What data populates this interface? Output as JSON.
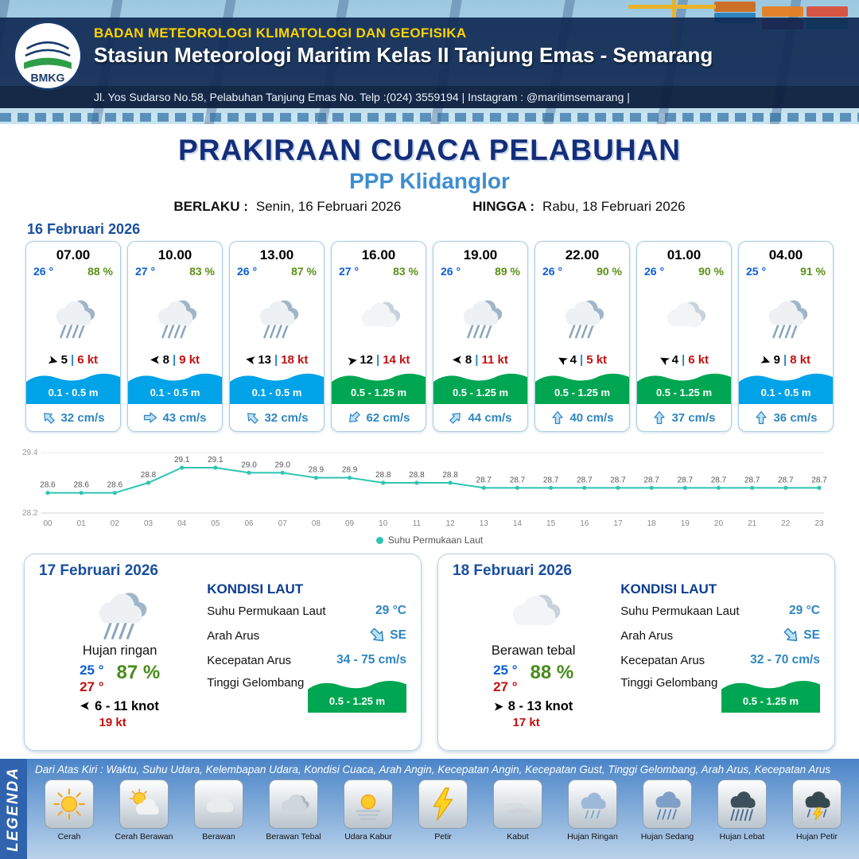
{
  "header": {
    "agency": "BADAN METEOROLOGI KLIMATOLOGI DAN GEOFISIKA",
    "station": "Stasiun Meteorologi Maritim Kelas II Tanjung Emas - Semarang",
    "address": "Jl. Yos Sudarso No.58, Pelabuhan Tanjung Emas No. Telp :(024) 3559194 | Instagram : @maritimsemarang |",
    "logo_text": "BMKG"
  },
  "title": {
    "main": "PRAKIRAAN CUACA PELABUHAN",
    "location": "PPP Klidanglor",
    "valid_label": "BERLAKU :",
    "valid_value": "Senin, 16 Februari 2026",
    "until_label": "HINGGA :",
    "until_value": "Rabu, 18 Februari 2026"
  },
  "icons": {
    "wind_arrow_glyph": "➤",
    "pipe_glyph": "|"
  },
  "hourly": {
    "date": "16 Februari 2026",
    "cards": [
      {
        "time": "07.00",
        "temperature": "26 °",
        "humidity": "88 %",
        "icon": "rain",
        "wind_dir_deg": 15,
        "wind_speed": "5",
        "wind_gust": "6 kt",
        "wave_height": "0.1 - 0.5 m",
        "wave_color": "blue",
        "current_dir_deg": -45,
        "current_speed": "32 cm/s"
      },
      {
        "time": "10.00",
        "temperature": "27 °",
        "humidity": "83 %",
        "icon": "rain",
        "wind_dir_deg": 180,
        "wind_speed": "8",
        "wind_gust": "9 kt",
        "wave_height": "0.1 - 0.5 m",
        "wave_color": "blue",
        "current_dir_deg": 90,
        "current_speed": "43 cm/s"
      },
      {
        "time": "13.00",
        "temperature": "26 °",
        "humidity": "87 %",
        "icon": "rain",
        "wind_dir_deg": 190,
        "wind_speed": "13",
        "wind_gust": "18 kt",
        "wave_height": "0.1 - 0.5 m",
        "wave_color": "blue",
        "current_dir_deg": -45,
        "current_speed": "32 cm/s"
      },
      {
        "time": "16.00",
        "temperature": "27 °",
        "humidity": "83 %",
        "icon": "cloudy",
        "wind_dir_deg": 350,
        "wind_speed": "12",
        "wind_gust": "14 kt",
        "wave_height": "0.5 - 1.25 m",
        "wave_color": "green",
        "current_dir_deg": 225,
        "current_speed": "62 cm/s"
      },
      {
        "time": "19.00",
        "temperature": "26 °",
        "humidity": "89 %",
        "icon": "rain",
        "wind_dir_deg": 180,
        "wind_speed": "8",
        "wind_gust": "11 kt",
        "wave_height": "0.5 - 1.25 m",
        "wave_color": "green",
        "current_dir_deg": 45,
        "current_speed": "44 cm/s"
      },
      {
        "time": "22.00",
        "temperature": "26 °",
        "humidity": "90 %",
        "icon": "rain",
        "wind_dir_deg": 210,
        "wind_speed": "4",
        "wind_gust": "5 kt",
        "wave_height": "0.5 - 1.25 m",
        "wave_color": "green",
        "current_dir_deg": 0,
        "current_speed": "40 cm/s"
      },
      {
        "time": "01.00",
        "temperature": "26 °",
        "humidity": "90 %",
        "icon": "cloudy",
        "wind_dir_deg": 210,
        "wind_speed": "4",
        "wind_gust": "6 kt",
        "wave_height": "0.5 - 1.25 m",
        "wave_color": "green",
        "current_dir_deg": 0,
        "current_speed": "37 cm/s"
      },
      {
        "time": "04.00",
        "temperature": "25 °",
        "humidity": "91 %",
        "icon": "rain",
        "wind_dir_deg": 20,
        "wind_speed": "9",
        "wind_gust": "8 kt",
        "wave_height": "0.1 - 0.5 m",
        "wave_color": "blue",
        "current_dir_deg": 0,
        "current_speed": "36 cm/s"
      }
    ]
  },
  "chart_data": {
    "type": "line",
    "x_labels": [
      "00",
      "01",
      "02",
      "03",
      "04",
      "05",
      "06",
      "07",
      "08",
      "09",
      "10",
      "11",
      "12",
      "13",
      "14",
      "15",
      "16",
      "17",
      "18",
      "19",
      "20",
      "21",
      "22",
      "23"
    ],
    "series": [
      {
        "name": "Suhu Permukaan Laut",
        "values": [
          28.6,
          28.6,
          28.6,
          28.8,
          29.1,
          29.1,
          29.0,
          29.0,
          28.9,
          28.9,
          28.8,
          28.8,
          28.8,
          28.7,
          28.7,
          28.7,
          28.7,
          28.7,
          28.7,
          28.7,
          28.7,
          28.7,
          28.7,
          28.7
        ]
      }
    ],
    "ylim": [
      28.2,
      29.4
    ],
    "yticks": [
      29.4,
      28.2
    ],
    "line_color": "#2fc4b2",
    "legend_label": "Suhu Permukaan Laut",
    "legend_position": "bottom-center",
    "grid": false,
    "title": ""
  },
  "sea_labels": {
    "title": "KONDISI LAUT",
    "sst": "Suhu Permukaan Laut",
    "dir": "Arah Arus",
    "speed": "Kecepatan Arus",
    "wave": "Tinggi Gelombang"
  },
  "days": [
    {
      "date": "17 Februari 2026",
      "icon": "rain",
      "condition": "Hujan ringan",
      "temp_min": "25 °",
      "temp_max": "27 °",
      "humidity": "87 %",
      "wind_dir_deg": 180,
      "wind_range": "6 - 11 knot",
      "wind_gust": "19 kt",
      "sea_temp": "29 °C",
      "current_dir": "SE",
      "current_dir_deg": 135,
      "current_speed": "34 - 75 cm/s",
      "wave_height": "0.5 - 1.25 m"
    },
    {
      "date": "18 Februari 2026",
      "icon": "cloudy",
      "condition": "Berawan tebal",
      "temp_min": "25 °",
      "temp_max": "27 °",
      "humidity": "88 %",
      "wind_dir_deg": 0,
      "wind_range": "8 - 13 knot",
      "wind_gust": "17 kt",
      "sea_temp": "29 °C",
      "current_dir": "SE",
      "current_dir_deg": 135,
      "current_speed": "32 - 70 cm/s",
      "wave_height": "0.5 - 1.25 m"
    }
  ],
  "legend": {
    "title": "LEGENDA",
    "description": "Dari Atas Kiri : Waktu, Suhu Udara, Kelembapan Udara, Kondisi Cuaca, Arah Angin, Kecepatan Angin, Kecepatan Gust, Tinggi Gelombang, Arah Arus, Kecepatan Arus",
    "items": [
      {
        "label": "Cerah",
        "icon": "sun"
      },
      {
        "label": "Cerah Berawan",
        "icon": "sun-cloud"
      },
      {
        "label": "Berawan",
        "icon": "cloud"
      },
      {
        "label": "Berawan Tebal",
        "icon": "cloud-dark"
      },
      {
        "label": "Udara Kabur",
        "icon": "haze"
      },
      {
        "label": "Petir",
        "icon": "thunder"
      },
      {
        "label": "Kabut",
        "icon": "fog"
      },
      {
        "label": "Hujan Ringan",
        "icon": "rain-light"
      },
      {
        "label": "Hujan Sedang",
        "icon": "rain-mid"
      },
      {
        "label": "Hujan Lebat",
        "icon": "rain-heavy"
      },
      {
        "label": "Hujan Petir",
        "icon": "storm"
      }
    ]
  },
  "colors": {
    "wave_blue": "#00a2e8",
    "wave_green": "#00a651",
    "accent_navy": "#132e7a",
    "accent_blue": "#3e8ed0",
    "temp_blue": "#0b5ed7",
    "humidity_green": "#5a9116",
    "gust_red": "#c40f0f",
    "chart_teal": "#2fc4b2"
  }
}
